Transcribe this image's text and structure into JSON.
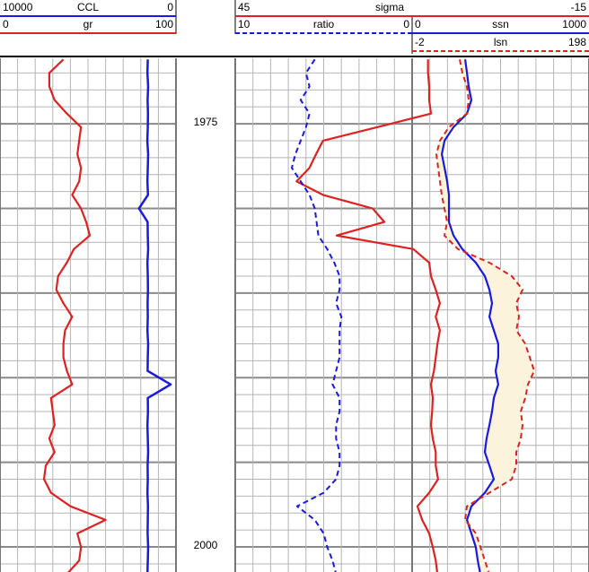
{
  "chart_data": {
    "type": "well-log",
    "depth": [
      1971.2,
      1972,
      1972.8,
      1973.6,
      1974.4,
      1975.2,
      1976,
      1976.8,
      1977.6,
      1978.4,
      1979.2,
      1980,
      1980.8,
      1981.6,
      1982.4,
      1983.2,
      1984,
      1984.8,
      1985.6,
      1986.4,
      1987.2,
      1988,
      1988.8,
      1989.6,
      1990.4,
      1991.2,
      1992,
      1992.8,
      1993.6,
      1994.4,
      1995.2,
      1996,
      1996.8,
      1997.6,
      1998.4,
      1999.2,
      2000,
      2000.8,
      2001.6
    ],
    "ylim": [
      1971.13,
      2001.48
    ],
    "yticks": [
      1975,
      2000
    ],
    "major_grid_step": 5,
    "minor_grid_step": 1,
    "fill_color": "#fbf3dc",
    "series": [
      {
        "name": "CCL",
        "color": "#1a1adf",
        "dash": false,
        "xlim": [
          10000,
          0
        ],
        "values": [
          1600,
          1620,
          1580,
          1610,
          1590,
          1600,
          1630,
          1580,
          1600,
          1620,
          1590,
          2100,
          1610,
          1600,
          1580,
          1620,
          1600,
          1590,
          1610,
          1600,
          1620,
          1580,
          1600,
          1610,
          300,
          1600,
          1590,
          1620,
          1600,
          1580,
          1610,
          1600,
          1620,
          1590,
          1600,
          1610,
          1580,
          1600,
          1620
        ]
      },
      {
        "name": "gr",
        "color": "#dd2222",
        "dash": false,
        "xlim": [
          0,
          100
        ],
        "values": [
          36,
          28,
          28,
          31,
          38,
          46,
          45,
          44,
          46,
          45,
          41,
          46,
          49,
          51,
          42,
          38,
          33,
          32,
          36,
          41,
          37,
          36,
          36,
          38,
          41,
          29,
          30,
          31,
          28,
          31,
          26,
          25,
          29,
          40,
          60,
          44,
          46,
          45,
          38
        ]
      },
      {
        "name": "sigma",
        "color": "#dd2222",
        "dash": false,
        "xlim": [
          45,
          -15
        ],
        "values": [
          12.3,
          12.3,
          12.1,
          12.1,
          11.8,
          20.9,
          30.1,
          31.3,
          32.4,
          34.6,
          30.1,
          21.7,
          19.7,
          27.8,
          14.8,
          12.1,
          11.8,
          11.0,
          10.3,
          11.0,
          10.3,
          10.7,
          11.0,
          11.3,
          11.8,
          11.5,
          11.6,
          11.8,
          11.5,
          11.0,
          11.0,
          10.6,
          12.1,
          14.1,
          13.3,
          12.1,
          11.5,
          11.0,
          10.7
        ]
      },
      {
        "name": "ratio",
        "color": "#1a1adf",
        "dash": true,
        "xlim": [
          10,
          0
        ],
        "values": [
          5.5,
          6.0,
          5.8,
          6.3,
          5.8,
          6.0,
          6.3,
          6.6,
          6.8,
          6.3,
          5.8,
          5.5,
          5.4,
          5.3,
          4.8,
          4.4,
          4.1,
          4.1,
          4.3,
          4.0,
          4.1,
          4.1,
          4.1,
          4.3,
          4.5,
          4.1,
          4.1,
          4.3,
          4.3,
          4.1,
          4.1,
          4.3,
          5.0,
          6.5,
          5.5,
          5.0,
          4.8,
          4.5,
          4.3
        ]
      },
      {
        "name": "ssn",
        "color": "#1a1adf",
        "dash": false,
        "xlim": [
          0,
          1000
        ],
        "values": [
          300,
          310,
          320,
          335,
          310,
          234,
          183,
          168,
          183,
          198,
          208,
          208,
          208,
          234,
          284,
          360,
          411,
          437,
          452,
          437,
          462,
          487,
          487,
          472,
          487,
          462,
          452,
          437,
          421,
          411,
          437,
          462,
          411,
          335,
          310,
          335,
          360,
          371,
          386
        ]
      },
      {
        "name": "lsn",
        "color": "#dd2222",
        "dash": true,
        "xlim": [
          -2,
          198
        ],
        "values": [
          51.8,
          54.9,
          59.9,
          62.0,
          59.9,
          39.6,
          29.5,
          25.4,
          27.4,
          29.5,
          31.5,
          34.5,
          37.6,
          34.5,
          49.8,
          85.3,
          110.7,
          122.9,
          115.8,
          118.8,
          115.8,
          125.9,
          131.0,
          136.1,
          129.0,
          125.9,
          120.8,
          122.9,
          120.8,
          115.8,
          115.8,
          110.7,
          85.3,
          59.9,
          57.9,
          70.1,
          75.2,
          80.2,
          85.3
        ]
      }
    ]
  }
}
